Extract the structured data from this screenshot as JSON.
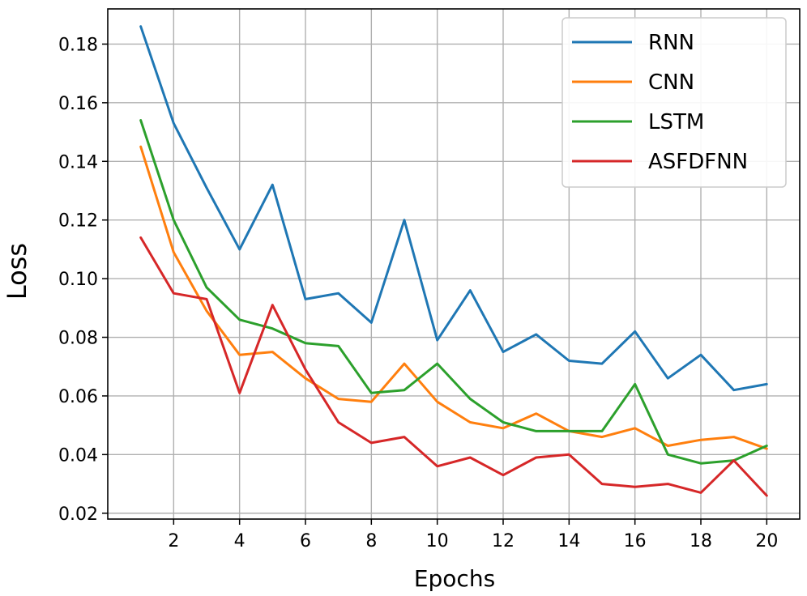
{
  "chart_data": {
    "type": "line",
    "title": "",
    "xlabel": "Epochs",
    "ylabel": "Loss",
    "xlim": [
      0.0,
      21.0
    ],
    "ylim": [
      0.018,
      0.192
    ],
    "xticks": [
      2,
      4,
      6,
      8,
      10,
      12,
      14,
      16,
      18,
      20
    ],
    "yticks": [
      0.02,
      0.04,
      0.06,
      0.08,
      0.1,
      0.12,
      0.14,
      0.16,
      0.18
    ],
    "xtick_labels": [
      "2",
      "4",
      "6",
      "8",
      "10",
      "12",
      "14",
      "16",
      "18",
      "20"
    ],
    "ytick_labels": [
      "0.02",
      "0.04",
      "0.06",
      "0.08",
      "0.10",
      "0.12",
      "0.14",
      "0.16",
      "0.18"
    ],
    "grid": true,
    "legend_position": "top-right",
    "x": [
      1,
      2,
      3,
      4,
      5,
      6,
      7,
      8,
      9,
      10,
      11,
      12,
      13,
      14,
      15,
      16,
      17,
      18,
      19,
      20
    ],
    "series": [
      {
        "name": "RNN",
        "color": "#1f77b4",
        "values": [
          0.186,
          0.153,
          0.131,
          0.11,
          0.132,
          0.093,
          0.095,
          0.085,
          0.12,
          0.079,
          0.096,
          0.075,
          0.081,
          0.072,
          0.071,
          0.082,
          0.066,
          0.074,
          0.062,
          0.064
        ]
      },
      {
        "name": "CNN",
        "color": "#ff7f0e",
        "values": [
          0.145,
          0.109,
          0.089,
          0.074,
          0.075,
          0.066,
          0.059,
          0.058,
          0.071,
          0.058,
          0.051,
          0.049,
          0.054,
          0.048,
          0.046,
          0.049,
          0.043,
          0.045,
          0.046,
          0.042
        ]
      },
      {
        "name": "LSTM",
        "color": "#2ca02c",
        "values": [
          0.154,
          0.12,
          0.097,
          0.086,
          0.083,
          0.078,
          0.077,
          0.061,
          0.062,
          0.071,
          0.059,
          0.051,
          0.048,
          0.048,
          0.048,
          0.064,
          0.04,
          0.037,
          0.038,
          0.043
        ]
      },
      {
        "name": "ASFDFNN",
        "color": "#d62728",
        "values": [
          0.114,
          0.095,
          0.093,
          0.061,
          0.091,
          0.069,
          0.051,
          0.044,
          0.046,
          0.036,
          0.039,
          0.033,
          0.039,
          0.04,
          0.03,
          0.029,
          0.03,
          0.027,
          0.038,
          0.026
        ]
      }
    ]
  }
}
